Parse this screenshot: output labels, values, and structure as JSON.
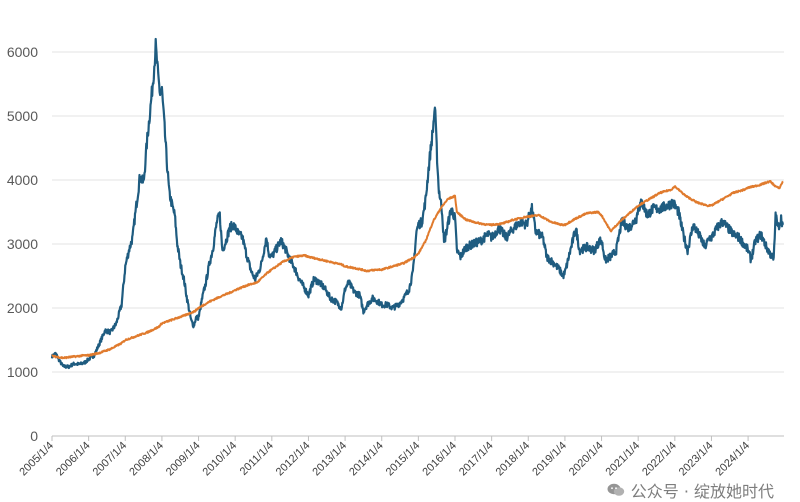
{
  "chart_data": {
    "type": "line",
    "title": "",
    "xlabel": "",
    "ylabel": "",
    "ylim": [
      0,
      6000
    ],
    "yticks": [
      "0",
      "1000",
      "2000",
      "3000",
      "4000",
      "5000",
      "6000"
    ],
    "grid": "horizontal",
    "legend": "none",
    "categories": [
      "2005/1/4",
      "2006/1/4",
      "2007/1/4",
      "2008/1/4",
      "2009/1/4",
      "2010/1/4",
      "2011/1/4",
      "2012/1/4",
      "2013/1/4",
      "2014/1/4",
      "2015/1/4",
      "2016/1/4",
      "2017/1/4",
      "2018/1/4",
      "2019/1/4",
      "2020/1/4",
      "2021/1/4",
      "2022/1/4",
      "2023/1/4",
      "2024/1/4"
    ],
    "series": [
      {
        "color": "#1f5c80",
        "points": [
          [
            2005.0,
            1240
          ],
          [
            2005.1,
            1290
          ],
          [
            2005.2,
            1180
          ],
          [
            2005.3,
            1090
          ],
          [
            2005.45,
            1080
          ],
          [
            2005.6,
            1130
          ],
          [
            2005.75,
            1120
          ],
          [
            2005.9,
            1150
          ],
          [
            2006.0,
            1200
          ],
          [
            2006.15,
            1260
          ],
          [
            2006.3,
            1450
          ],
          [
            2006.45,
            1650
          ],
          [
            2006.6,
            1620
          ],
          [
            2006.75,
            1750
          ],
          [
            2006.9,
            2050
          ],
          [
            2007.0,
            2650
          ],
          [
            2007.1,
            2900
          ],
          [
            2007.2,
            3100
          ],
          [
            2007.3,
            3600
          ],
          [
            2007.4,
            4050
          ],
          [
            2007.5,
            3950
          ],
          [
            2007.55,
            4300
          ],
          [
            2007.6,
            4650
          ],
          [
            2007.7,
            5200
          ],
          [
            2007.78,
            5700
          ],
          [
            2007.83,
            6090
          ],
          [
            2007.9,
            5600
          ],
          [
            2007.95,
            5350
          ],
          [
            2008.0,
            5400
          ],
          [
            2008.05,
            5000
          ],
          [
            2008.12,
            4400
          ],
          [
            2008.2,
            3800
          ],
          [
            2008.28,
            3600
          ],
          [
            2008.35,
            3450
          ],
          [
            2008.42,
            3000
          ],
          [
            2008.5,
            2700
          ],
          [
            2008.6,
            2450
          ],
          [
            2008.7,
            2100
          ],
          [
            2008.8,
            1800
          ],
          [
            2008.87,
            1720
          ],
          [
            2008.93,
            1850
          ],
          [
            2009.0,
            1850
          ],
          [
            2009.1,
            2150
          ],
          [
            2009.2,
            2400
          ],
          [
            2009.3,
            2700
          ],
          [
            2009.4,
            2950
          ],
          [
            2009.5,
            3350
          ],
          [
            2009.58,
            3450
          ],
          [
            2009.65,
            2900
          ],
          [
            2009.75,
            3050
          ],
          [
            2009.85,
            3250
          ],
          [
            2009.95,
            3300
          ],
          [
            2010.0,
            3250
          ],
          [
            2010.1,
            3150
          ],
          [
            2010.2,
            3100
          ],
          [
            2010.3,
            2850
          ],
          [
            2010.45,
            2550
          ],
          [
            2010.55,
            2450
          ],
          [
            2010.7,
            2650
          ],
          [
            2010.8,
            2950
          ],
          [
            2010.85,
            3100
          ],
          [
            2010.92,
            2850
          ],
          [
            2011.0,
            2800
          ],
          [
            2011.1,
            2900
          ],
          [
            2011.25,
            3050
          ],
          [
            2011.35,
            2950
          ],
          [
            2011.5,
            2750
          ],
          [
            2011.6,
            2650
          ],
          [
            2011.75,
            2450
          ],
          [
            2011.9,
            2300
          ],
          [
            2012.0,
            2200
          ],
          [
            2012.15,
            2450
          ],
          [
            2012.3,
            2400
          ],
          [
            2012.45,
            2300
          ],
          [
            2012.6,
            2150
          ],
          [
            2012.75,
            2100
          ],
          [
            2012.9,
            2000
          ],
          [
            2012.97,
            2200
          ],
          [
            2013.0,
            2300
          ],
          [
            2013.1,
            2400
          ],
          [
            2013.25,
            2250
          ],
          [
            2013.4,
            2200
          ],
          [
            2013.5,
            1950
          ],
          [
            2013.6,
            2050
          ],
          [
            2013.75,
            2150
          ],
          [
            2013.9,
            2100
          ],
          [
            2014.0,
            2050
          ],
          [
            2014.15,
            2050
          ],
          [
            2014.3,
            2000
          ],
          [
            2014.45,
            2050
          ],
          [
            2014.6,
            2150
          ],
          [
            2014.75,
            2300
          ],
          [
            2014.85,
            2550
          ],
          [
            2014.95,
            3200
          ],
          [
            2015.0,
            3300
          ],
          [
            2015.1,
            3350
          ],
          [
            2015.2,
            3700
          ],
          [
            2015.3,
            4300
          ],
          [
            2015.4,
            4800
          ],
          [
            2015.45,
            5150
          ],
          [
            2015.5,
            4500
          ],
          [
            2015.55,
            3900
          ],
          [
            2015.65,
            3500
          ],
          [
            2015.7,
            3000
          ],
          [
            2015.8,
            3300
          ],
          [
            2015.9,
            3550
          ],
          [
            2016.0,
            3400
          ],
          [
            2016.05,
            2900
          ],
          [
            2016.15,
            2800
          ],
          [
            2016.3,
            2950
          ],
          [
            2016.5,
            3000
          ],
          [
            2016.7,
            3050
          ],
          [
            2016.9,
            3150
          ],
          [
            2017.0,
            3100
          ],
          [
            2017.2,
            3250
          ],
          [
            2017.4,
            3100
          ],
          [
            2017.6,
            3250
          ],
          [
            2017.8,
            3350
          ],
          [
            2017.95,
            3300
          ],
          [
            2018.0,
            3400
          ],
          [
            2018.1,
            3550
          ],
          [
            2018.2,
            3200
          ],
          [
            2018.4,
            3100
          ],
          [
            2018.5,
            2800
          ],
          [
            2018.7,
            2700
          ],
          [
            2018.85,
            2600
          ],
          [
            2018.95,
            2500
          ],
          [
            2019.0,
            2550
          ],
          [
            2019.15,
            2900
          ],
          [
            2019.3,
            3250
          ],
          [
            2019.4,
            2900
          ],
          [
            2019.6,
            2950
          ],
          [
            2019.8,
            2900
          ],
          [
            2019.95,
            3050
          ],
          [
            2020.0,
            3050
          ],
          [
            2020.1,
            2750
          ],
          [
            2020.25,
            2800
          ],
          [
            2020.4,
            2900
          ],
          [
            2020.55,
            3350
          ],
          [
            2020.75,
            3250
          ],
          [
            2020.95,
            3400
          ],
          [
            2021.0,
            3550
          ],
          [
            2021.1,
            3650
          ],
          [
            2021.25,
            3450
          ],
          [
            2021.4,
            3550
          ],
          [
            2021.6,
            3550
          ],
          [
            2021.8,
            3600
          ],
          [
            2021.95,
            3650
          ],
          [
            2022.0,
            3600
          ],
          [
            2022.1,
            3500
          ],
          [
            2022.25,
            3100
          ],
          [
            2022.35,
            2900
          ],
          [
            2022.5,
            3300
          ],
          [
            2022.7,
            3100
          ],
          [
            2022.82,
            2950
          ],
          [
            2022.95,
            3100
          ],
          [
            2023.0,
            3100
          ],
          [
            2023.15,
            3250
          ],
          [
            2023.3,
            3350
          ],
          [
            2023.45,
            3250
          ],
          [
            2023.6,
            3150
          ],
          [
            2023.75,
            3100
          ],
          [
            2023.95,
            2950
          ],
          [
            2024.0,
            2900
          ],
          [
            2024.08,
            2750
          ],
          [
            2024.2,
            3050
          ],
          [
            2024.35,
            3150
          ],
          [
            2024.5,
            2950
          ],
          [
            2024.65,
            2800
          ],
          [
            2024.7,
            2750
          ],
          [
            2024.75,
            3450
          ],
          [
            2024.82,
            3250
          ],
          [
            2024.9,
            3400
          ],
          [
            2024.95,
            3300
          ]
        ]
      },
      {
        "color": "#e07b2e",
        "points": [
          [
            2005.0,
            1250
          ],
          [
            2005.3,
            1220
          ],
          [
            2005.6,
            1240
          ],
          [
            2005.9,
            1260
          ],
          [
            2006.0,
            1260
          ],
          [
            2006.3,
            1300
          ],
          [
            2006.6,
            1360
          ],
          [
            2006.9,
            1450
          ],
          [
            2007.0,
            1500
          ],
          [
            2007.3,
            1560
          ],
          [
            2007.6,
            1620
          ],
          [
            2007.9,
            1700
          ],
          [
            2008.0,
            1760
          ],
          [
            2008.3,
            1820
          ],
          [
            2008.6,
            1880
          ],
          [
            2008.9,
            1950
          ],
          [
            2009.0,
            2000
          ],
          [
            2009.3,
            2100
          ],
          [
            2009.6,
            2180
          ],
          [
            2009.9,
            2250
          ],
          [
            2010.0,
            2280
          ],
          [
            2010.3,
            2350
          ],
          [
            2010.6,
            2400
          ],
          [
            2010.9,
            2560
          ],
          [
            2011.0,
            2600
          ],
          [
            2011.3,
            2720
          ],
          [
            2011.6,
            2800
          ],
          [
            2011.9,
            2820
          ],
          [
            2012.0,
            2800
          ],
          [
            2012.3,
            2760
          ],
          [
            2012.6,
            2720
          ],
          [
            2012.9,
            2680
          ],
          [
            2013.0,
            2650
          ],
          [
            2013.3,
            2620
          ],
          [
            2013.6,
            2580
          ],
          [
            2013.9,
            2600
          ],
          [
            2014.0,
            2600
          ],
          [
            2014.3,
            2650
          ],
          [
            2014.6,
            2700
          ],
          [
            2014.9,
            2800
          ],
          [
            2015.0,
            2850
          ],
          [
            2015.2,
            3050
          ],
          [
            2015.4,
            3350
          ],
          [
            2015.6,
            3550
          ],
          [
            2015.8,
            3700
          ],
          [
            2016.0,
            3750
          ],
          [
            2016.05,
            3500
          ],
          [
            2016.3,
            3380
          ],
          [
            2016.6,
            3330
          ],
          [
            2016.9,
            3300
          ],
          [
            2017.0,
            3300
          ],
          [
            2017.3,
            3320
          ],
          [
            2017.6,
            3380
          ],
          [
            2017.9,
            3420
          ],
          [
            2018.0,
            3430
          ],
          [
            2018.3,
            3450
          ],
          [
            2018.6,
            3350
          ],
          [
            2018.9,
            3300
          ],
          [
            2019.0,
            3300
          ],
          [
            2019.3,
            3400
          ],
          [
            2019.6,
            3480
          ],
          [
            2019.9,
            3500
          ],
          [
            2020.0,
            3450
          ],
          [
            2020.25,
            3200
          ],
          [
            2020.5,
            3350
          ],
          [
            2020.8,
            3500
          ],
          [
            2021.0,
            3600
          ],
          [
            2021.3,
            3700
          ],
          [
            2021.6,
            3800
          ],
          [
            2021.9,
            3850
          ],
          [
            2022.0,
            3900
          ],
          [
            2022.3,
            3750
          ],
          [
            2022.6,
            3650
          ],
          [
            2022.9,
            3600
          ],
          [
            2023.0,
            3600
          ],
          [
            2023.3,
            3700
          ],
          [
            2023.6,
            3800
          ],
          [
            2023.9,
            3850
          ],
          [
            2024.0,
            3880
          ],
          [
            2024.3,
            3920
          ],
          [
            2024.6,
            3980
          ],
          [
            2024.75,
            3900
          ],
          [
            2024.85,
            3870
          ],
          [
            2024.95,
            3980
          ]
        ]
      }
    ]
  },
  "watermark": {
    "text": "公众号 · 绽放她时代",
    "icon": "wechat-icon"
  }
}
